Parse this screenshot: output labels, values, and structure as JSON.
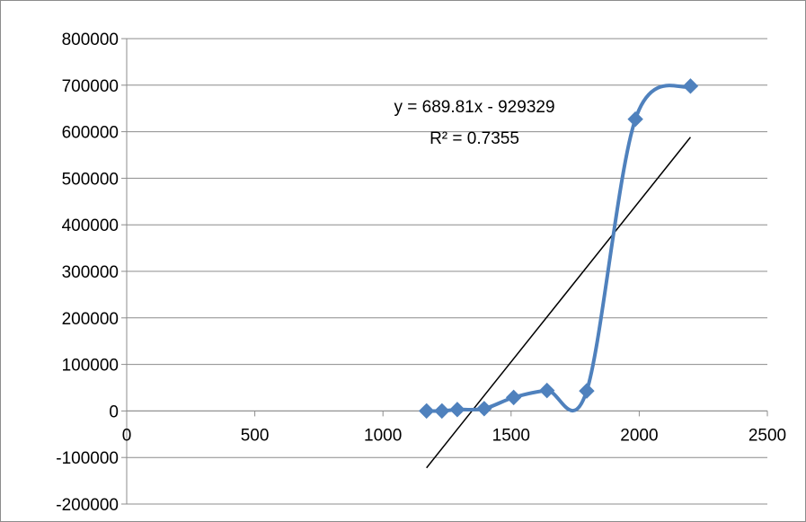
{
  "chart_data": {
    "type": "scatter",
    "title": "",
    "xlabel": "",
    "ylabel": "",
    "xlim": [
      0,
      2500
    ],
    "ylim": [
      -200000,
      800000
    ],
    "x_ticks": [
      0,
      500,
      1000,
      1500,
      2000,
      2500
    ],
    "y_ticks": [
      -200000,
      -100000,
      0,
      100000,
      200000,
      300000,
      400000,
      500000,
      600000,
      700000,
      800000
    ],
    "x_tick_labels": [
      "0",
      "500",
      "1000",
      "1500",
      "2000",
      "2500"
    ],
    "y_tick_labels": [
      "-200000",
      "-100000",
      "0",
      "100000",
      "200000",
      "300000",
      "400000",
      "500000",
      "600000",
      "700000",
      "800000"
    ],
    "grid": "horizontal",
    "legend": "none",
    "series": [
      {
        "style": "smoothed-line-with-diamond-markers",
        "color": "#4f81bd",
        "x": [
          1170,
          1230,
          1290,
          1395,
          1510,
          1640,
          1795,
          1985,
          2200
        ],
        "y": [
          0,
          0,
          3000,
          5000,
          29000,
          44000,
          43000,
          627000,
          698000
        ]
      }
    ],
    "trendline": {
      "type": "linear",
      "color": "#000000",
      "slope": 689.81,
      "intercept": -929329,
      "x_range": [
        1170,
        2200
      ]
    },
    "annotations": {
      "equation": "y = 689.81x - 929329",
      "r_squared": "R² = 0.7355"
    }
  }
}
